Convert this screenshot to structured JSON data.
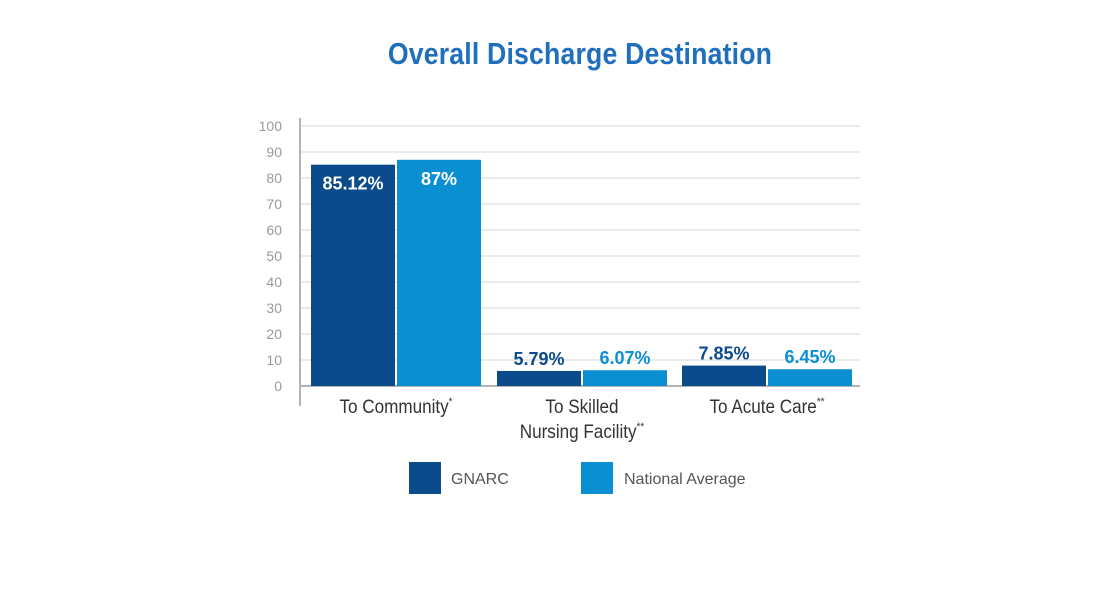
{
  "chart_data": {
    "type": "bar",
    "title": "Overall Discharge Destination",
    "categories": [
      {
        "lines": [
          "To Community"
        ],
        "sup": "*"
      },
      {
        "lines": [
          "To Skilled",
          "Nursing Facility"
        ],
        "sup": "**"
      },
      {
        "lines": [
          "To Acute Care"
        ],
        "sup": "**"
      }
    ],
    "series": [
      {
        "name": "GNARC",
        "color": "#0b4a8b",
        "values": [
          85.12,
          5.79,
          7.85
        ],
        "labels": [
          "85.12%",
          "5.79%",
          "7.85%"
        ]
      },
      {
        "name": "National Average",
        "color": "#0b8fd3",
        "values": [
          87,
          6.07,
          6.45
        ],
        "labels": [
          "87%",
          "6.07%",
          "6.45%"
        ]
      }
    ],
    "ylim": [
      0,
      100
    ],
    "yticks": [
      0,
      10,
      20,
      30,
      40,
      50,
      60,
      70,
      80,
      90,
      100
    ],
    "grid": true,
    "legend_position": "bottom"
  }
}
